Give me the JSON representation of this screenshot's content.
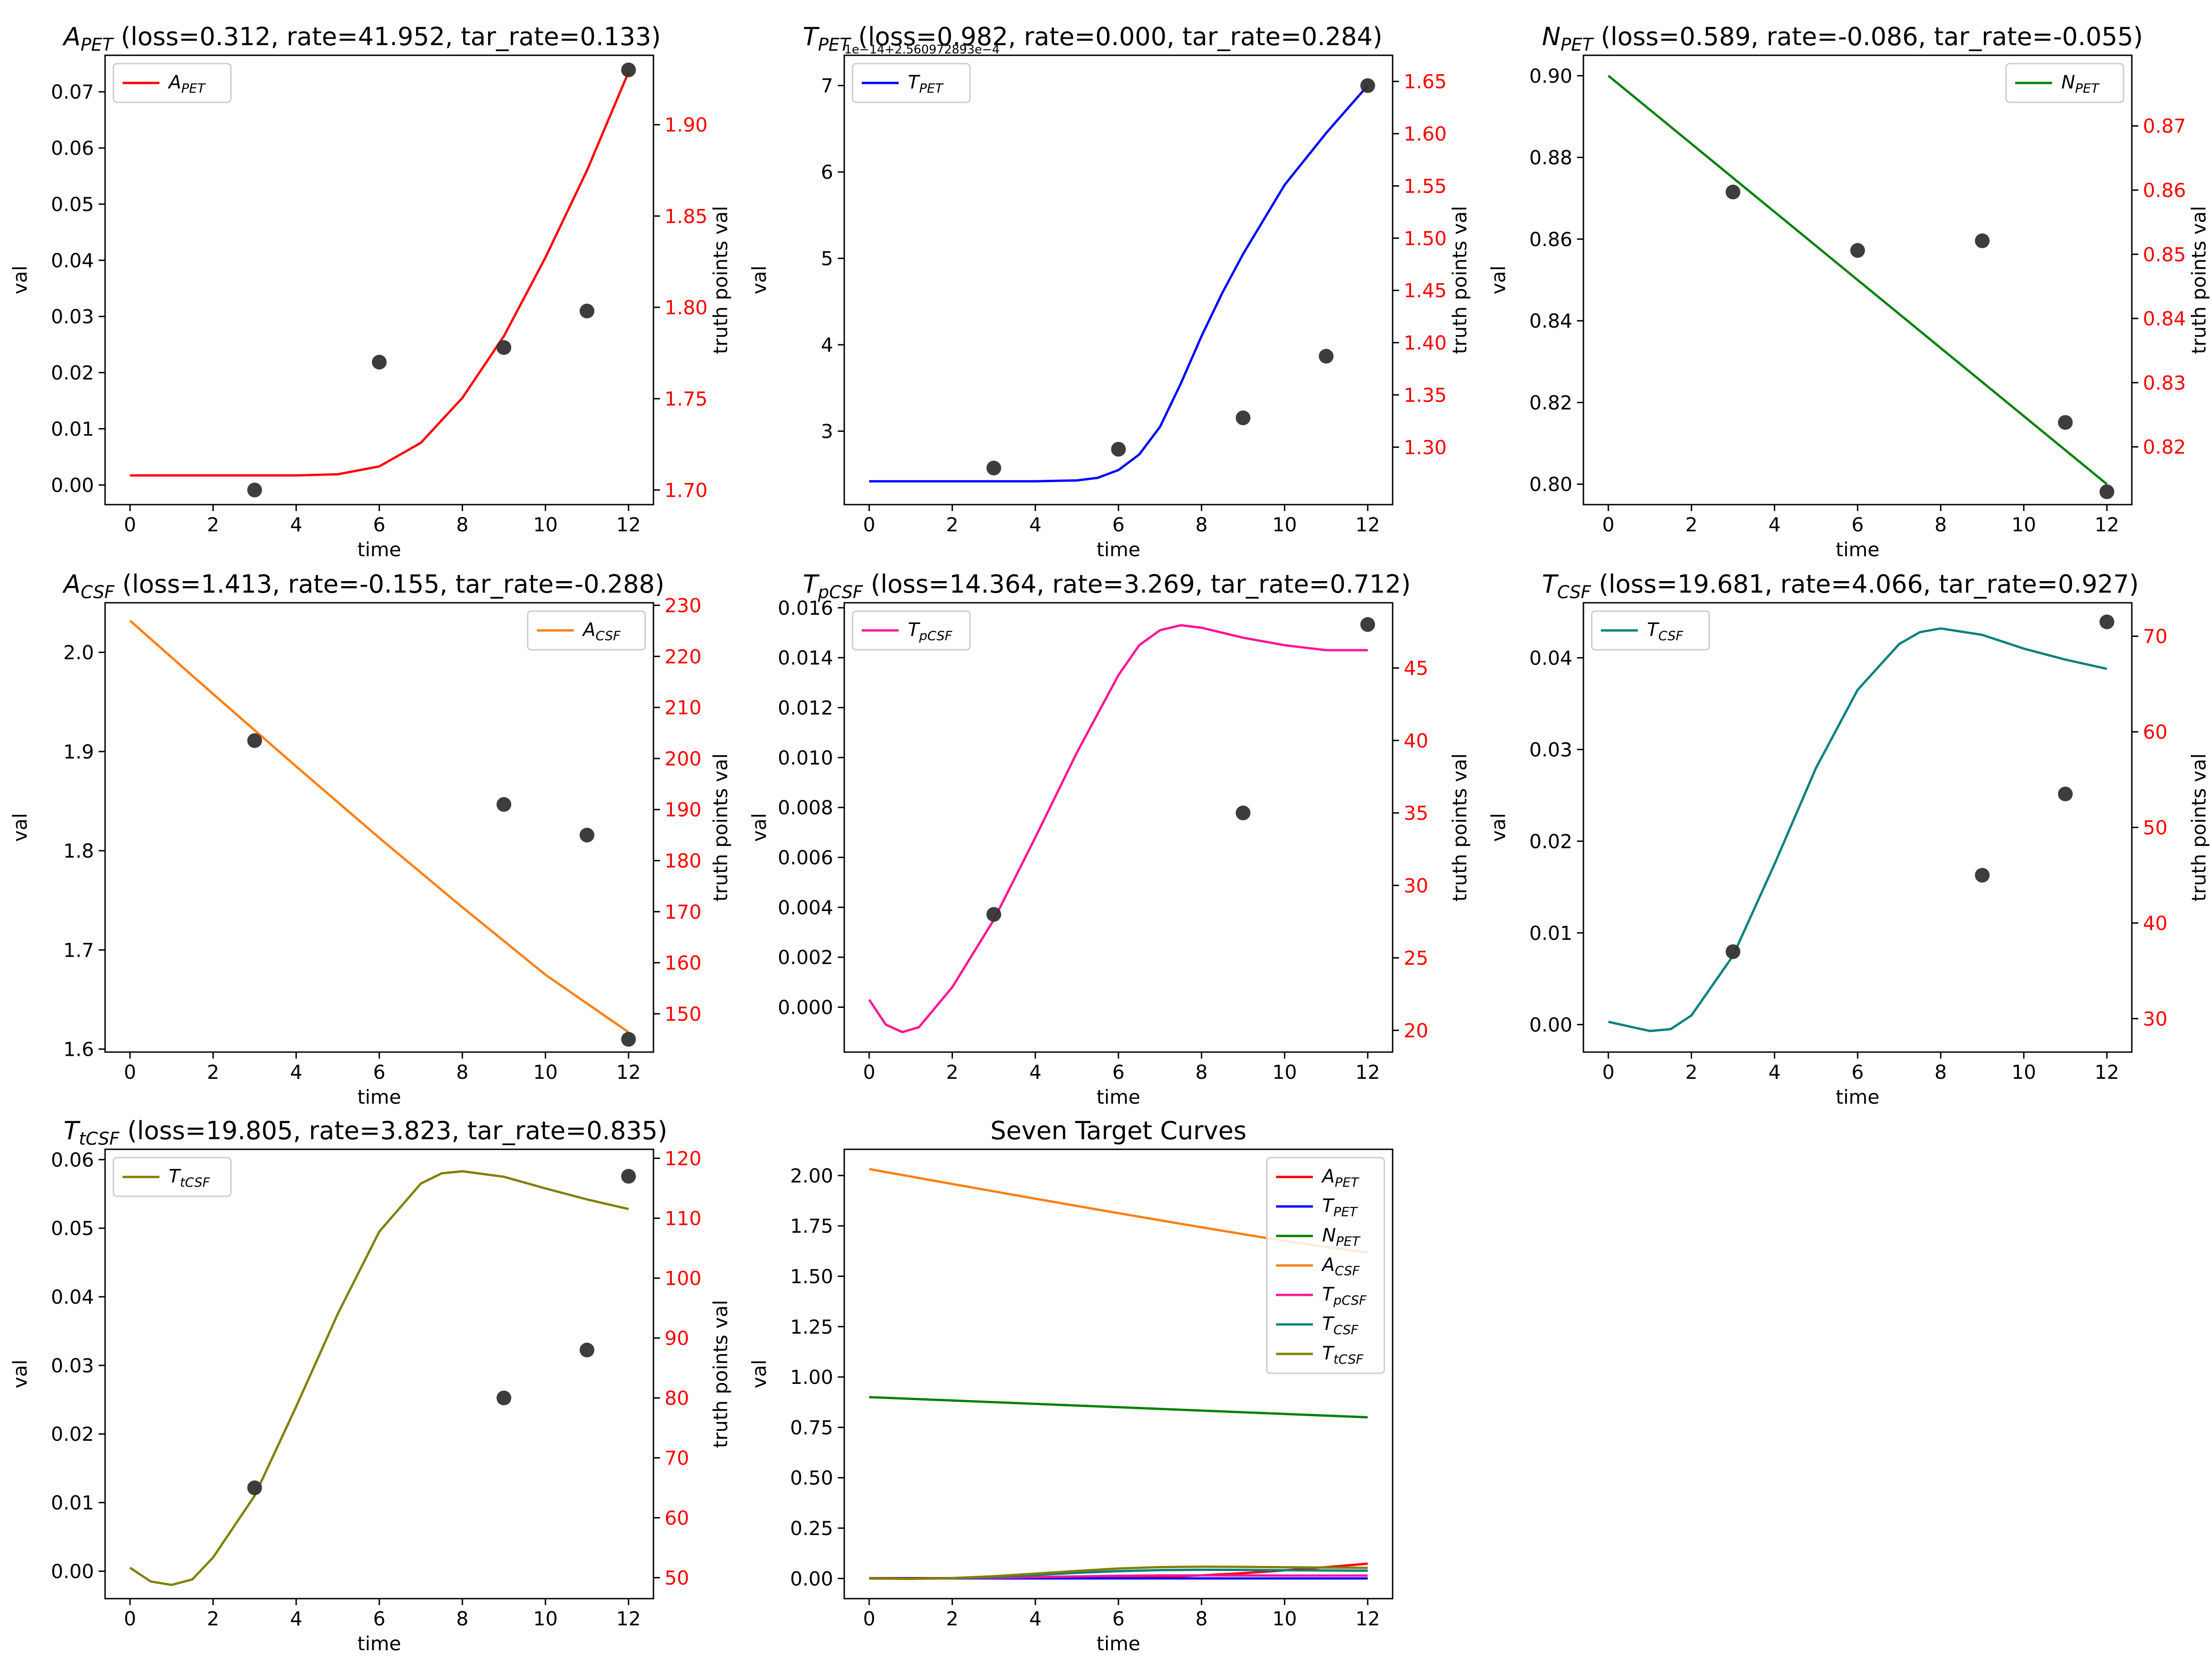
{
  "colors": {
    "red": "#ff0000",
    "blue": "#0000ff",
    "green": "#008000",
    "orange": "#ff7f0e",
    "magenta": "#ff1493",
    "teal": "#008080",
    "olive": "#808000",
    "truth_axis": "#ff0000",
    "points": "#333333"
  },
  "chart_data": [
    {
      "type": "line",
      "title": {
        "sym": "A",
        "sub": "PET",
        "rest": " (loss=0.312, rate=41.952, tar_rate=0.133)"
      },
      "xlabel": "time",
      "ylabel": "val",
      "y2label": "truth points val",
      "legend": {
        "position": "top-left"
      },
      "color": "#ff0000",
      "xlim": [
        -0.6,
        12.6
      ],
      "ylim": [
        -0.0035,
        0.0765
      ],
      "y2lim": [
        1.692,
        1.938
      ],
      "xticks": [
        0,
        2,
        4,
        6,
        8,
        10,
        12
      ],
      "yticks": [
        0.0,
        0.01,
        0.02,
        0.03,
        0.04,
        0.05,
        0.06,
        0.07
      ],
      "yticklabels": [
        "0.00",
        "0.01",
        "0.02",
        "0.03",
        "0.04",
        "0.05",
        "0.06",
        "0.07"
      ],
      "y2ticks": [
        1.7,
        1.75,
        1.8,
        1.85,
        1.9
      ],
      "y2ticklabels": [
        "1.70",
        "1.75",
        "1.80",
        "1.85",
        "1.90"
      ],
      "series": [
        {
          "sym": "A",
          "sub": "PET",
          "x": [
            0,
            2,
            4,
            5,
            6,
            7,
            8,
            9,
            10,
            11,
            12
          ],
          "y": [
            0.0017,
            0.0017,
            0.0017,
            0.0019,
            0.0033,
            0.0075,
            0.0155,
            0.0265,
            0.0405,
            0.056,
            0.0735
          ]
        }
      ],
      "truth_points": {
        "x": [
          3,
          6,
          9,
          11,
          12
        ],
        "y": [
          1.7,
          1.77,
          1.778,
          1.798,
          1.93
        ]
      }
    },
    {
      "type": "line",
      "title": {
        "sym": "T",
        "sub": "PET",
        "rest": " (loss=0.982, rate=0.000, tar_rate=0.284)"
      },
      "xlabel": "time",
      "ylabel": "val",
      "y2label": "truth points val",
      "offset_text": "1e−14+2.560972893e−4",
      "legend": {
        "position": "top-left"
      },
      "color": "#0000ff",
      "xlim": [
        -0.6,
        12.6
      ],
      "ylim": [
        2.15,
        7.35
      ],
      "y2lim": [
        1.245,
        1.675
      ],
      "xticks": [
        0,
        2,
        4,
        6,
        8,
        10,
        12
      ],
      "yticks": [
        3,
        4,
        5,
        6,
        7
      ],
      "yticklabels": [
        "3",
        "4",
        "5",
        "6",
        "7"
      ],
      "y2ticks": [
        1.3,
        1.35,
        1.4,
        1.45,
        1.5,
        1.55,
        1.6,
        1.65
      ],
      "y2ticklabels": [
        "1.30",
        "1.35",
        "1.40",
        "1.45",
        "1.50",
        "1.55",
        "1.60",
        "1.65"
      ],
      "series": [
        {
          "sym": "T",
          "sub": "PET",
          "x": [
            0,
            2,
            4,
            5,
            5.5,
            6,
            6.5,
            7,
            7.5,
            8,
            8.5,
            9,
            10,
            11,
            12
          ],
          "y": [
            2.42,
            2.42,
            2.42,
            2.43,
            2.46,
            2.55,
            2.73,
            3.05,
            3.55,
            4.1,
            4.6,
            5.05,
            5.85,
            6.45,
            7.0
          ]
        }
      ],
      "truth_points": {
        "x": [
          3,
          6,
          9,
          11,
          12
        ],
        "y": [
          1.28,
          1.298,
          1.328,
          1.387,
          1.646
        ]
      }
    },
    {
      "type": "line",
      "title": {
        "sym": "N",
        "sub": "PET",
        "rest": " (loss=0.589, rate=-0.086, tar_rate=-0.055)"
      },
      "xlabel": "time",
      "ylabel": "val",
      "y2label": "truth points val",
      "legend": {
        "position": "top-right"
      },
      "color": "#008000",
      "xlim": [
        -0.6,
        12.6
      ],
      "ylim": [
        0.795,
        0.905
      ],
      "y2lim": [
        0.811,
        0.881
      ],
      "xticks": [
        0,
        2,
        4,
        6,
        8,
        10,
        12
      ],
      "yticks": [
        0.8,
        0.82,
        0.84,
        0.86,
        0.88,
        0.9
      ],
      "yticklabels": [
        "0.80",
        "0.82",
        "0.84",
        "0.86",
        "0.88",
        "0.90"
      ],
      "y2ticks": [
        0.82,
        0.83,
        0.84,
        0.85,
        0.86,
        0.87
      ],
      "y2ticklabels": [
        "0.82",
        "0.83",
        "0.84",
        "0.85",
        "0.86",
        "0.87"
      ],
      "series": [
        {
          "sym": "N",
          "sub": "PET",
          "x": [
            0,
            3,
            6,
            9,
            12
          ],
          "y": [
            0.9,
            0.875,
            0.85,
            0.825,
            0.8
          ]
        }
      ],
      "truth_points": {
        "x": [
          3,
          6,
          9,
          11,
          12
        ],
        "y": [
          0.8597,
          0.8506,
          0.8521,
          0.8238,
          0.813
        ]
      }
    },
    {
      "type": "line",
      "title": {
        "sym": "A",
        "sub": "CSF",
        "rest": " (loss=1.413, rate=-0.155, tar_rate=-0.288)"
      },
      "xlabel": "time",
      "ylabel": "val",
      "y2label": "truth points val",
      "legend": {
        "position": "top-right"
      },
      "color": "#ff7f0e",
      "xlim": [
        -0.6,
        12.6
      ],
      "ylim": [
        1.597,
        2.05
      ],
      "y2lim": [
        142.5,
        230.5
      ],
      "xticks": [
        0,
        2,
        4,
        6,
        8,
        10,
        12
      ],
      "yticks": [
        1.6,
        1.7,
        1.8,
        1.9,
        2.0
      ],
      "yticklabels": [
        "1.6",
        "1.7",
        "1.8",
        "1.9",
        "2.0"
      ],
      "y2ticks": [
        150,
        160,
        170,
        180,
        190,
        200,
        210,
        220,
        230
      ],
      "y2ticklabels": [
        "150",
        "160",
        "170",
        "180",
        "190",
        "200",
        "210",
        "220",
        "230"
      ],
      "series": [
        {
          "sym": "A",
          "sub": "CSF",
          "x": [
            0,
            2,
            4,
            6,
            8,
            10,
            12
          ],
          "y": [
            2.032,
            1.958,
            1.885,
            1.813,
            1.743,
            1.675,
            1.617
          ]
        }
      ],
      "truth_points": {
        "x": [
          3,
          9,
          11,
          12
        ],
        "y": [
          203.5,
          191.0,
          185.0,
          145.0
        ]
      }
    },
    {
      "type": "line",
      "title": {
        "sym": "T",
        "sub": "pCSF",
        "rest": " (loss=14.364, rate=3.269, tar_rate=0.712)"
      },
      "xlabel": "time",
      "ylabel": "val",
      "y2label": "truth points val",
      "legend": {
        "position": "top-left"
      },
      "color": "#ff1493",
      "xlim": [
        -0.6,
        12.6
      ],
      "ylim": [
        -0.0018,
        0.0162
      ],
      "y2lim": [
        18.5,
        49.5
      ],
      "xticks": [
        0,
        2,
        4,
        6,
        8,
        10,
        12
      ],
      "yticks": [
        0.0,
        0.002,
        0.004,
        0.006,
        0.008,
        0.01,
        0.012,
        0.014,
        0.016
      ],
      "yticklabels": [
        "0.000",
        "0.002",
        "0.004",
        "0.006",
        "0.008",
        "0.010",
        "0.012",
        "0.014",
        "0.016"
      ],
      "y2ticks": [
        20,
        25,
        30,
        35,
        40,
        45
      ],
      "y2ticklabels": [
        "20",
        "25",
        "30",
        "35",
        "40",
        "45"
      ],
      "series": [
        {
          "sym": "T",
          "sub": "pCSF",
          "x": [
            0,
            0.4,
            0.8,
            1.2,
            2,
            3,
            4,
            5,
            6,
            6.5,
            7,
            7.5,
            8,
            9,
            10,
            11,
            12
          ],
          "y": [
            0.0003,
            -0.0007,
            -0.001,
            -0.0008,
            0.0008,
            0.0035,
            0.0068,
            0.0102,
            0.0133,
            0.0145,
            0.0151,
            0.0153,
            0.0152,
            0.0148,
            0.0145,
            0.0143,
            0.0143
          ]
        }
      ],
      "truth_points": {
        "x": [
          3,
          9,
          12
        ],
        "y": [
          28.0,
          35.0,
          48.0
        ]
      }
    },
    {
      "type": "line",
      "title": {
        "sym": "T",
        "sub": "CSF",
        "rest": " (loss=19.681, rate=4.066, tar_rate=0.927)"
      },
      "xlabel": "time",
      "ylabel": "val",
      "y2label": "truth points val",
      "legend": {
        "position": "top-left"
      },
      "color": "#008080",
      "xlim": [
        -0.6,
        12.6
      ],
      "ylim": [
        -0.003,
        0.046
      ],
      "y2lim": [
        26.5,
        73.5
      ],
      "xticks": [
        0,
        2,
        4,
        6,
        8,
        10,
        12
      ],
      "yticks": [
        0.0,
        0.01,
        0.02,
        0.03,
        0.04
      ],
      "yticklabels": [
        "0.00",
        "0.01",
        "0.02",
        "0.03",
        "0.04"
      ],
      "y2ticks": [
        30,
        40,
        50,
        60,
        70
      ],
      "y2ticklabels": [
        "30",
        "40",
        "50",
        "60",
        "70"
      ],
      "series": [
        {
          "sym": "T",
          "sub": "CSF",
          "x": [
            0,
            0.5,
            1,
            1.5,
            2,
            3,
            4,
            5,
            6,
            7,
            7.5,
            8,
            9,
            10,
            11,
            12
          ],
          "y": [
            0.0003,
            -0.0002,
            -0.0007,
            -0.0005,
            0.001,
            0.0075,
            0.0175,
            0.028,
            0.0365,
            0.0415,
            0.0428,
            0.0432,
            0.0425,
            0.041,
            0.0398,
            0.0388
          ]
        }
      ],
      "truth_points": {
        "x": [
          3,
          9,
          11,
          12
        ],
        "y": [
          37.0,
          45.0,
          53.5,
          71.5
        ]
      }
    },
    {
      "type": "line",
      "title": {
        "sym": "T",
        "sub": "tCSF",
        "rest": " (loss=19.805, rate=3.823, tar_rate=0.835)"
      },
      "xlabel": "time",
      "ylabel": "val",
      "y2label": "truth points val",
      "legend": {
        "position": "top-left"
      },
      "color": "#808000",
      "xlim": [
        -0.6,
        12.6
      ],
      "ylim": [
        -0.004,
        0.0615
      ],
      "y2lim": [
        46.5,
        121.5
      ],
      "xticks": [
        0,
        2,
        4,
        6,
        8,
        10,
        12
      ],
      "yticks": [
        0.0,
        0.01,
        0.02,
        0.03,
        0.04,
        0.05,
        0.06
      ],
      "yticklabels": [
        "0.00",
        "0.01",
        "0.02",
        "0.03",
        "0.04",
        "0.05",
        "0.06"
      ],
      "y2ticks": [
        50,
        60,
        70,
        80,
        90,
        100,
        110,
        120
      ],
      "y2ticklabels": [
        "50",
        "60",
        "70",
        "80",
        "90",
        "100",
        "110",
        "120"
      ],
      "series": [
        {
          "sym": "T",
          "sub": "tCSF",
          "x": [
            0,
            0.5,
            1,
            1.5,
            2,
            3,
            4,
            5,
            6,
            7,
            7.5,
            8,
            9,
            10,
            11,
            12
          ],
          "y": [
            0.0005,
            -0.0015,
            -0.002,
            -0.0012,
            0.002,
            0.011,
            0.024,
            0.0375,
            0.0495,
            0.0565,
            0.058,
            0.0583,
            0.0575,
            0.0558,
            0.0542,
            0.0528
          ]
        }
      ],
      "truth_points": {
        "x": [
          3,
          9,
          11,
          12
        ],
        "y": [
          65.0,
          80.0,
          88.0,
          117.0
        ]
      }
    },
    {
      "type": "line",
      "title": {
        "sym": "",
        "sub": "",
        "rest": "Seven Target Curves"
      },
      "xlabel": "time",
      "ylabel": "val",
      "legend": {
        "position": "top-right"
      },
      "xlim": [
        -0.6,
        12.6
      ],
      "ylim": [
        -0.1,
        2.13
      ],
      "xticks": [
        0,
        2,
        4,
        6,
        8,
        10,
        12
      ],
      "yticks": [
        0.0,
        0.25,
        0.5,
        0.75,
        1.0,
        1.25,
        1.5,
        1.75,
        2.0
      ],
      "yticklabels": [
        "0.00",
        "0.25",
        "0.50",
        "0.75",
        "1.00",
        "1.25",
        "1.50",
        "1.75",
        "2.00"
      ],
      "series": [
        {
          "sym": "A",
          "sub": "PET",
          "color": "#ff0000",
          "x": [
            0,
            2,
            4,
            5,
            6,
            7,
            8,
            9,
            10,
            11,
            12
          ],
          "y": [
            0.0017,
            0.0017,
            0.0017,
            0.0019,
            0.0033,
            0.0075,
            0.0155,
            0.0265,
            0.0405,
            0.056,
            0.0735
          ]
        },
        {
          "sym": "T",
          "sub": "PET",
          "color": "#0000ff",
          "x": [
            0,
            12
          ],
          "y": [
            0.0003,
            0.0003
          ]
        },
        {
          "sym": "N",
          "sub": "PET",
          "color": "#008000",
          "x": [
            0,
            3,
            6,
            9,
            12
          ],
          "y": [
            0.9,
            0.875,
            0.85,
            0.825,
            0.8
          ]
        },
        {
          "sym": "A",
          "sub": "CSF",
          "color": "#ff7f0e",
          "x": [
            0,
            2,
            4,
            6,
            8,
            10,
            12
          ],
          "y": [
            2.032,
            1.958,
            1.885,
            1.813,
            1.743,
            1.675,
            1.617
          ]
        },
        {
          "sym": "T",
          "sub": "pCSF",
          "color": "#ff1493",
          "x": [
            0,
            0.8,
            2,
            3,
            4,
            5,
            6,
            7,
            7.5,
            8,
            9,
            10,
            11,
            12
          ],
          "y": [
            0.0003,
            -0.001,
            0.0008,
            0.0035,
            0.0068,
            0.0102,
            0.0133,
            0.0151,
            0.0153,
            0.0152,
            0.0148,
            0.0145,
            0.0143,
            0.0143
          ]
        },
        {
          "sym": "T",
          "sub": "CSF",
          "color": "#008080",
          "x": [
            0,
            1,
            2,
            3,
            4,
            5,
            6,
            7,
            8,
            9,
            10,
            11,
            12
          ],
          "y": [
            0.0003,
            -0.0007,
            0.001,
            0.0075,
            0.0175,
            0.028,
            0.0365,
            0.0415,
            0.0432,
            0.0425,
            0.041,
            0.0398,
            0.0388
          ]
        },
        {
          "sym": "T",
          "sub": "tCSF",
          "color": "#808000",
          "x": [
            0,
            1,
            2,
            3,
            4,
            5,
            6,
            7,
            8,
            9,
            10,
            11,
            12
          ],
          "y": [
            0.0005,
            -0.002,
            0.002,
            0.011,
            0.024,
            0.0375,
            0.0495,
            0.0565,
            0.0583,
            0.0575,
            0.0558,
            0.0542,
            0.0528
          ]
        }
      ]
    }
  ]
}
